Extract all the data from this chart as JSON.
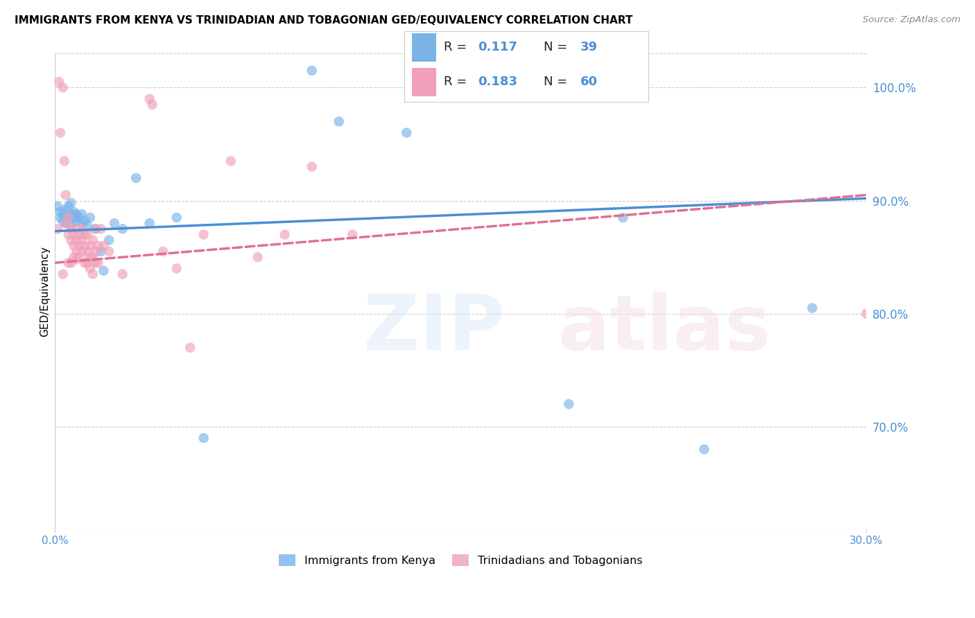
{
  "title": "IMMIGRANTS FROM KENYA VS TRINIDADIAN AND TOBAGONIAN GED/EQUIVALENCY CORRELATION CHART",
  "source": "Source: ZipAtlas.com",
  "ylabel": "GED/Equivalency",
  "ytick_values": [
    70,
    80,
    90,
    100
  ],
  "xlim": [
    0.0,
    30.0
  ],
  "ylim": [
    61.0,
    103.0
  ],
  "legend_label1": "Immigrants from Kenya",
  "legend_label2": "Trinidadians and Tobagonians",
  "R_kenya": 0.117,
  "N_kenya": 39,
  "R_tt": 0.183,
  "N_tt": 60,
  "kenya_color": "#7ab3e8",
  "tt_color": "#f0a0b8",
  "kenya_line_color": "#4a8fd4",
  "tt_line_color": "#e07090",
  "kenya_scatter": [
    [
      0.1,
      89.5
    ],
    [
      0.2,
      89.0
    ],
    [
      0.2,
      88.5
    ],
    [
      0.3,
      88.8
    ],
    [
      0.3,
      88.2
    ],
    [
      0.4,
      89.2
    ],
    [
      0.4,
      88.0
    ],
    [
      0.5,
      89.5
    ],
    [
      0.5,
      88.5
    ],
    [
      0.6,
      89.8
    ],
    [
      0.6,
      88.8
    ],
    [
      0.6,
      87.8
    ],
    [
      0.7,
      89.0
    ],
    [
      0.7,
      88.5
    ],
    [
      0.8,
      88.8
    ],
    [
      0.8,
      88.2
    ],
    [
      0.9,
      88.5
    ],
    [
      1.0,
      88.8
    ],
    [
      1.0,
      88.0
    ],
    [
      1.1,
      88.2
    ],
    [
      1.2,
      87.8
    ],
    [
      1.3,
      88.5
    ],
    [
      1.5,
      87.5
    ],
    [
      1.7,
      85.5
    ],
    [
      1.8,
      83.8
    ],
    [
      2.0,
      86.5
    ],
    [
      2.2,
      88.0
    ],
    [
      2.5,
      87.5
    ],
    [
      3.0,
      92.0
    ],
    [
      3.5,
      88.0
    ],
    [
      4.5,
      88.5
    ],
    [
      5.5,
      69.0
    ],
    [
      9.5,
      101.5
    ],
    [
      10.5,
      97.0
    ],
    [
      13.0,
      96.0
    ],
    [
      19.0,
      72.0
    ],
    [
      21.0,
      88.5
    ],
    [
      24.0,
      68.0
    ],
    [
      28.0,
      80.5
    ]
  ],
  "tt_scatter": [
    [
      0.1,
      87.5
    ],
    [
      0.15,
      100.5
    ],
    [
      0.2,
      96.0
    ],
    [
      0.3,
      83.5
    ],
    [
      0.3,
      100.0
    ],
    [
      0.35,
      93.5
    ],
    [
      0.4,
      88.0
    ],
    [
      0.4,
      90.5
    ],
    [
      0.5,
      87.0
    ],
    [
      0.5,
      84.5
    ],
    [
      0.5,
      88.5
    ],
    [
      0.6,
      87.5
    ],
    [
      0.6,
      86.5
    ],
    [
      0.6,
      84.5
    ],
    [
      0.7,
      87.0
    ],
    [
      0.7,
      86.0
    ],
    [
      0.7,
      85.0
    ],
    [
      0.8,
      87.5
    ],
    [
      0.8,
      86.5
    ],
    [
      0.8,
      85.5
    ],
    [
      0.8,
      84.8
    ],
    [
      0.9,
      87.0
    ],
    [
      0.9,
      86.0
    ],
    [
      0.9,
      85.0
    ],
    [
      1.0,
      87.5
    ],
    [
      1.0,
      86.5
    ],
    [
      1.0,
      85.5
    ],
    [
      1.1,
      87.0
    ],
    [
      1.1,
      86.0
    ],
    [
      1.1,
      84.5
    ],
    [
      1.2,
      87.0
    ],
    [
      1.2,
      85.5
    ],
    [
      1.2,
      84.5
    ],
    [
      1.3,
      86.0
    ],
    [
      1.3,
      85.0
    ],
    [
      1.3,
      84.0
    ],
    [
      1.4,
      86.5
    ],
    [
      1.4,
      85.0
    ],
    [
      1.4,
      83.5
    ],
    [
      1.5,
      87.5
    ],
    [
      1.5,
      85.5
    ],
    [
      1.5,
      84.5
    ],
    [
      1.6,
      86.0
    ],
    [
      1.6,
      84.5
    ],
    [
      1.7,
      87.5
    ],
    [
      1.8,
      86.0
    ],
    [
      2.0,
      85.5
    ],
    [
      2.5,
      83.5
    ],
    [
      3.5,
      99.0
    ],
    [
      3.6,
      98.5
    ],
    [
      4.0,
      85.5
    ],
    [
      4.5,
      84.0
    ],
    [
      5.0,
      77.0
    ],
    [
      5.5,
      87.0
    ],
    [
      6.5,
      93.5
    ],
    [
      7.5,
      85.0
    ],
    [
      8.5,
      87.0
    ],
    [
      9.5,
      93.0
    ],
    [
      11.0,
      87.0
    ],
    [
      30.0,
      80.0
    ]
  ],
  "kenya_trendline": [
    0.0,
    30.0,
    87.3,
    90.2
  ],
  "tt_trendline": [
    0.0,
    30.0,
    84.5,
    90.5
  ]
}
